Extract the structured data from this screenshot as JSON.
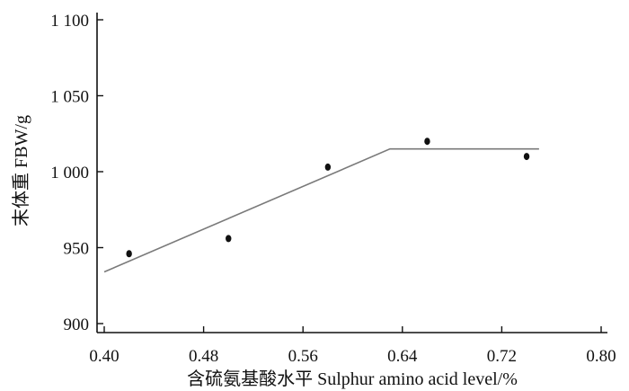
{
  "chart_data": {
    "type": "scatter",
    "title": "",
    "xlabel": "含硫氨基酸水平 Sulphur amino acid level/%",
    "ylabel": "末体重 FBW/g",
    "xlim": [
      0.4,
      0.8
    ],
    "ylim": [
      900,
      1100
    ],
    "x_ticks": [
      0.4,
      0.48,
      0.56,
      0.64,
      0.72,
      0.8
    ],
    "x_tick_labels": [
      "0.40",
      "0.48",
      "0.56",
      "0.64",
      "0.72",
      "0.80"
    ],
    "y_ticks": [
      900,
      950,
      1000,
      1050,
      1100
    ],
    "y_tick_labels": [
      "900",
      "950",
      "1 000",
      "1 050",
      "1 100"
    ],
    "grid": false,
    "points": {
      "x": [
        0.42,
        0.5,
        0.58,
        0.66,
        0.74
      ],
      "y": [
        946,
        956,
        1003,
        1020,
        1010
      ]
    },
    "fit_line": {
      "x": [
        0.4,
        0.63,
        0.75
      ],
      "y": [
        934,
        1015,
        1015
      ]
    }
  }
}
